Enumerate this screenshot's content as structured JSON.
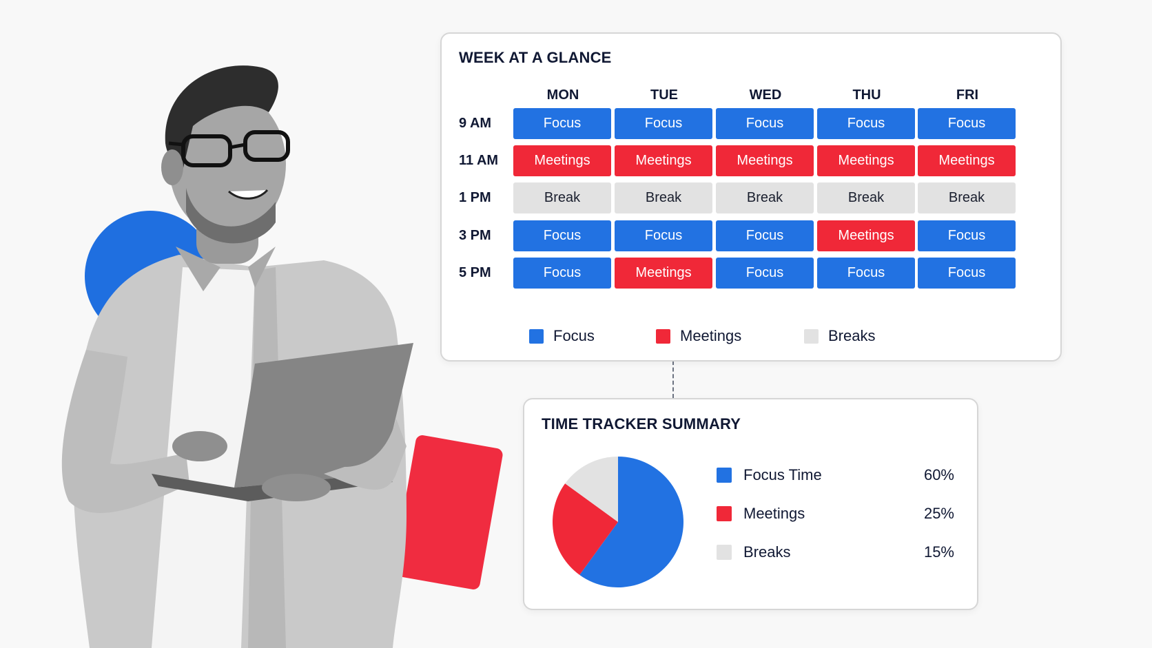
{
  "colors": {
    "focus": "#2272e2",
    "meetings": "#f02838",
    "breaks": "#e2e2e2",
    "accent_circle": "#1f6fe0",
    "accent_card": "#f02c40"
  },
  "week": {
    "title": "WEEK AT A GLANCE",
    "days": [
      "MON",
      "TUE",
      "WED",
      "THU",
      "FRI"
    ],
    "rows": [
      {
        "time": "9 AM",
        "slots": [
          {
            "type": "focus",
            "label": "Focus"
          },
          {
            "type": "focus",
            "label": "Focus"
          },
          {
            "type": "focus",
            "label": "Focus"
          },
          {
            "type": "focus",
            "label": "Focus"
          },
          {
            "type": "focus",
            "label": "Focus"
          }
        ]
      },
      {
        "time": "11 AM",
        "slots": [
          {
            "type": "meetings",
            "label": "Meetings"
          },
          {
            "type": "meetings",
            "label": "Meetings"
          },
          {
            "type": "meetings",
            "label": "Meetings"
          },
          {
            "type": "meetings",
            "label": "Meetings"
          },
          {
            "type": "meetings",
            "label": "Meetings"
          }
        ]
      },
      {
        "time": "1 PM",
        "slots": [
          {
            "type": "break",
            "label": "Break"
          },
          {
            "type": "break",
            "label": "Break"
          },
          {
            "type": "break",
            "label": "Break"
          },
          {
            "type": "break",
            "label": "Break"
          },
          {
            "type": "break",
            "label": "Break"
          }
        ]
      },
      {
        "time": "3 PM",
        "slots": [
          {
            "type": "focus",
            "label": "Focus"
          },
          {
            "type": "focus",
            "label": "Focus"
          },
          {
            "type": "focus",
            "label": "Focus"
          },
          {
            "type": "meetings",
            "label": "Meetings"
          },
          {
            "type": "focus",
            "label": "Focus"
          }
        ]
      },
      {
        "time": "5 PM",
        "slots": [
          {
            "type": "focus",
            "label": "Focus"
          },
          {
            "type": "meetings",
            "label": "Meetings"
          },
          {
            "type": "focus",
            "label": "Focus"
          },
          {
            "type": "focus",
            "label": "Focus"
          },
          {
            "type": "focus",
            "label": "Focus"
          }
        ]
      }
    ],
    "legend": [
      {
        "type": "focus",
        "label": "Focus"
      },
      {
        "type": "meetings",
        "label": "Meetings"
      },
      {
        "type": "break",
        "label": "Breaks"
      }
    ]
  },
  "summary": {
    "title": "TIME TRACKER SUMMARY",
    "items": [
      {
        "type": "focus",
        "label": "Focus Time",
        "value": "60%",
        "pct": 60
      },
      {
        "type": "meetings",
        "label": "Meetings",
        "value": "25%",
        "pct": 25
      },
      {
        "type": "break",
        "label": "Breaks",
        "value": "15%",
        "pct": 15
      }
    ]
  }
}
